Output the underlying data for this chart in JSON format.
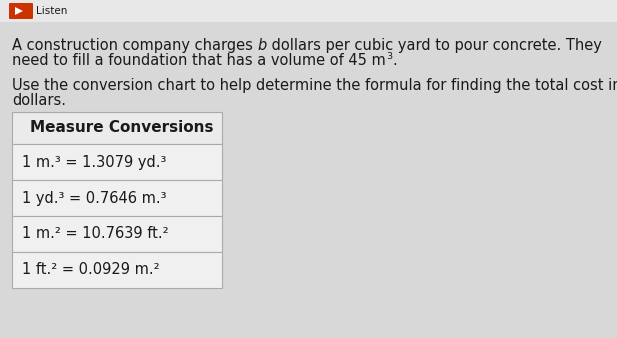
{
  "bg_color": "#d8d8d8",
  "text_color": "#1a1a1a",
  "table_bg": "#f2f2f2",
  "table_border": "#aaaaaa",
  "table_header": "Measure Conversions",
  "table_rows": [
    "1 m.³ = 1.3079 yd.³",
    "1 yd.³ = 0.7646 m.³",
    "1 m.² = 10.7639 ft.²",
    "1 ft.² = 0.0929 m.²"
  ],
  "font_size_body": 10.5,
  "font_size_table": 10.5,
  "font_size_header": 11.0,
  "icon_color": "#cc3300",
  "icon_text_color": "#444444"
}
